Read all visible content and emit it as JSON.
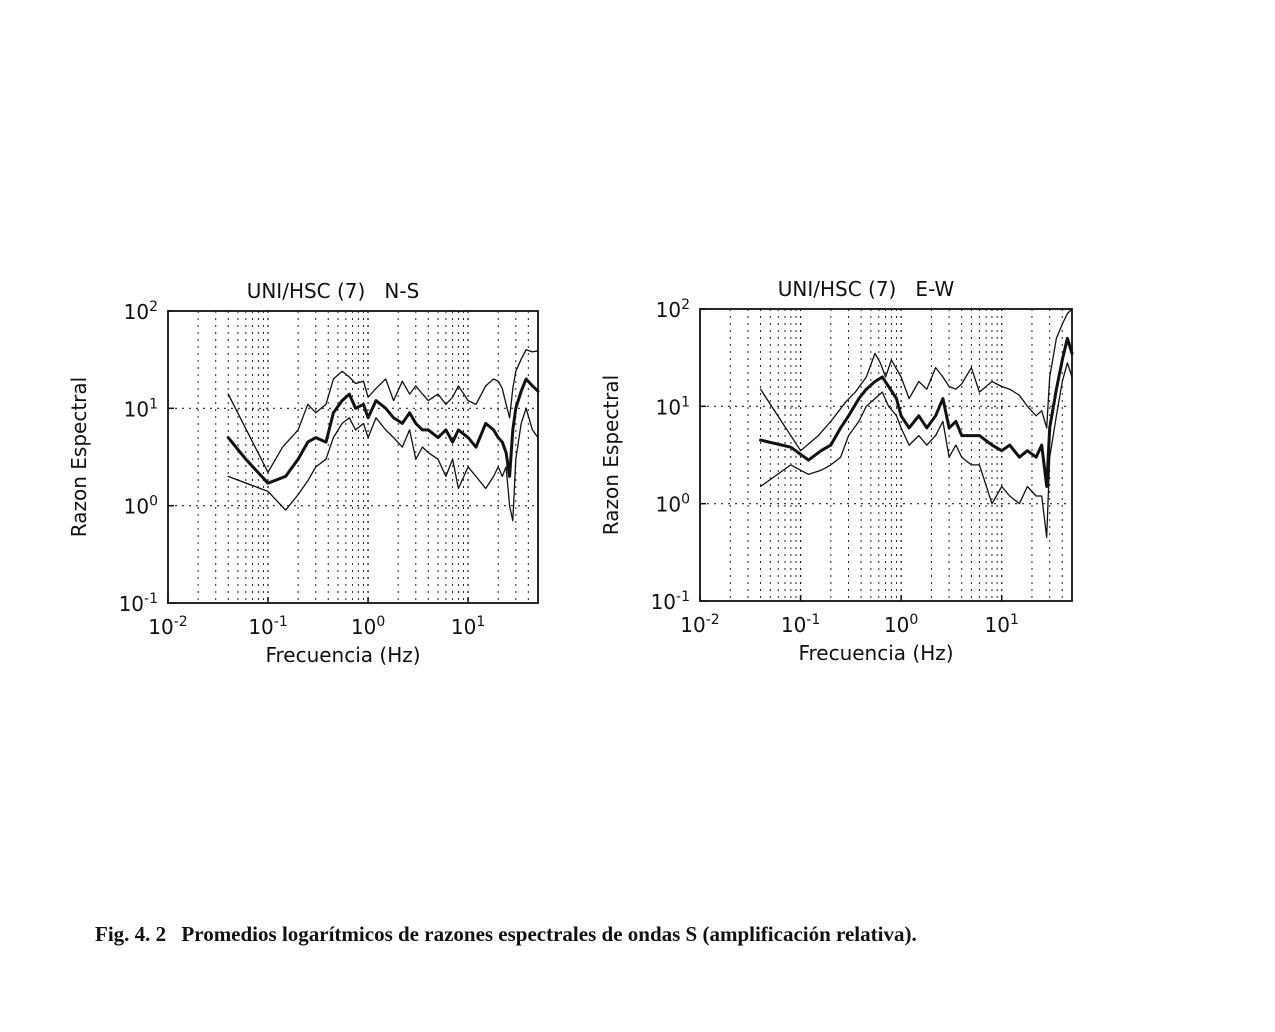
{
  "chart_data": [
    {
      "type": "line",
      "title": "UNI/HSC (7)   N-S",
      "xlabel": "Frecuencia (Hz)",
      "ylabel": "Razon Espectral",
      "xscale": "log",
      "yscale": "log",
      "xlim": [
        0.01,
        50
      ],
      "ylim": [
        0.1,
        100
      ],
      "grid": true,
      "xticks": [
        {
          "base": "10",
          "exp": "-2"
        },
        {
          "base": "10",
          "exp": "-1"
        },
        {
          "base": "10",
          "exp": "0"
        },
        {
          "base": "10",
          "exp": "1"
        }
      ],
      "yticks": [
        {
          "base": "10",
          "exp": "-1"
        },
        {
          "base": "10",
          "exp": "0"
        },
        {
          "base": "10",
          "exp": "1"
        },
        {
          "base": "10",
          "exp": "2"
        }
      ],
      "series": [
        {
          "role": "upper",
          "x": [
            0.04,
            0.1,
            0.14,
            0.2,
            0.25,
            0.3,
            0.38,
            0.45,
            0.55,
            0.65,
            0.75,
            0.9,
            1.0,
            1.2,
            1.5,
            1.8,
            2.2,
            2.6,
            3.0,
            3.5,
            4.0,
            5.0,
            6.0,
            7.0,
            8.0,
            10,
            12,
            15,
            18,
            20,
            22,
            24,
            26,
            28,
            30,
            34,
            38,
            44,
            50
          ],
          "y": [
            14,
            2.2,
            4,
            6,
            11,
            9,
            11,
            20,
            24,
            21,
            18,
            19,
            13,
            16,
            20,
            12,
            19,
            14,
            17,
            14,
            12,
            14,
            11,
            13,
            17,
            12,
            11,
            17,
            20,
            19,
            16,
            11,
            8,
            16,
            24,
            32,
            40,
            38,
            39
          ]
        },
        {
          "role": "mean",
          "x": [
            0.04,
            0.06,
            0.1,
            0.15,
            0.2,
            0.25,
            0.3,
            0.38,
            0.45,
            0.55,
            0.65,
            0.75,
            0.9,
            1.0,
            1.2,
            1.5,
            1.8,
            2.2,
            2.6,
            3.0,
            3.5,
            4.0,
            5.0,
            6.0,
            7.0,
            8.0,
            10,
            12,
            15,
            18,
            20,
            22,
            24,
            26,
            28,
            30,
            34,
            38,
            44,
            50
          ],
          "y": [
            5,
            3,
            1.7,
            2,
            3,
            4.5,
            5,
            4.5,
            9,
            12,
            14,
            10,
            11,
            8,
            12,
            10,
            8,
            7,
            9,
            7,
            6,
            6,
            5,
            6,
            4.5,
            6,
            5,
            4,
            7,
            6,
            5,
            4.5,
            3.5,
            2,
            6,
            10,
            15,
            20,
            17,
            15
          ]
        },
        {
          "role": "lower",
          "x": [
            0.04,
            0.1,
            0.15,
            0.2,
            0.25,
            0.3,
            0.38,
            0.45,
            0.55,
            0.65,
            0.75,
            0.9,
            1.0,
            1.2,
            1.5,
            1.8,
            2.2,
            2.6,
            3.0,
            3.5,
            4.0,
            5.0,
            6.0,
            7.0,
            8.0,
            10,
            12,
            15,
            18,
            20,
            22,
            24,
            26,
            28,
            30,
            34,
            38,
            44,
            50
          ],
          "y": [
            2,
            1.4,
            0.9,
            1.3,
            1.8,
            2.5,
            3,
            5,
            7,
            8,
            6,
            7,
            5,
            8,
            6,
            5,
            4,
            6,
            3,
            4,
            3.5,
            3,
            2,
            3,
            1.5,
            2.5,
            2,
            1.5,
            2,
            2.5,
            2,
            2.5,
            1,
            0.7,
            3,
            7,
            10,
            6,
            5
          ]
        }
      ]
    },
    {
      "type": "line",
      "title": "UNI/HSC (7)   E-W",
      "xlabel": "Frecuencia (Hz)",
      "ylabel": "Razon Espectral",
      "xscale": "log",
      "yscale": "log",
      "xlim": [
        0.01,
        50
      ],
      "ylim": [
        0.1,
        100
      ],
      "grid": true,
      "xticks": [
        {
          "base": "10",
          "exp": "-2"
        },
        {
          "base": "10",
          "exp": "-1"
        },
        {
          "base": "10",
          "exp": "0"
        },
        {
          "base": "10",
          "exp": "1"
        }
      ],
      "yticks": [
        {
          "base": "10",
          "exp": "-1"
        },
        {
          "base": "10",
          "exp": "0"
        },
        {
          "base": "10",
          "exp": "1"
        },
        {
          "base": "10",
          "exp": "2"
        }
      ],
      "series": [
        {
          "role": "upper",
          "x": [
            0.04,
            0.1,
            0.15,
            0.2,
            0.28,
            0.35,
            0.45,
            0.55,
            0.62,
            0.7,
            0.8,
            1.0,
            1.2,
            1.5,
            1.8,
            2.2,
            2.6,
            3.0,
            3.5,
            4.0,
            5.0,
            6.0,
            8.0,
            10,
            12,
            15,
            18,
            22,
            25,
            28,
            30,
            35,
            40,
            45,
            50
          ],
          "y": [
            15,
            3.5,
            5,
            7,
            11,
            14,
            20,
            35,
            28,
            20,
            30,
            20,
            12,
            18,
            15,
            25,
            20,
            16,
            15,
            17,
            25,
            14,
            18,
            16,
            15,
            13,
            10,
            8,
            9,
            6,
            20,
            50,
            70,
            90,
            100
          ]
        },
        {
          "role": "mean",
          "x": [
            0.04,
            0.08,
            0.12,
            0.16,
            0.2,
            0.25,
            0.3,
            0.38,
            0.45,
            0.55,
            0.65,
            0.75,
            0.9,
            1.0,
            1.2,
            1.5,
            1.8,
            2.2,
            2.6,
            3.0,
            3.5,
            4.0,
            5.0,
            6.0,
            8.0,
            10,
            12,
            15,
            18,
            22,
            25,
            28,
            30,
            35,
            40,
            45,
            50
          ],
          "y": [
            4.5,
            3.8,
            2.8,
            3.5,
            4,
            6,
            8,
            12,
            15,
            18,
            20,
            16,
            12,
            8,
            6,
            8,
            6,
            8,
            12,
            6,
            7,
            5,
            5,
            5,
            4,
            3.5,
            4,
            3,
            3.5,
            3,
            4,
            1.5,
            6,
            15,
            30,
            50,
            35
          ]
        },
        {
          "role": "lower",
          "x": [
            0.04,
            0.08,
            0.12,
            0.16,
            0.2,
            0.25,
            0.3,
            0.38,
            0.45,
            0.55,
            0.65,
            0.75,
            0.9,
            1.0,
            1.2,
            1.5,
            1.8,
            2.2,
            2.6,
            3.0,
            3.5,
            4.0,
            5.0,
            6.0,
            8.0,
            10,
            12,
            15,
            18,
            22,
            25,
            28,
            30,
            35,
            40,
            45,
            50
          ],
          "y": [
            1.5,
            2.5,
            2,
            2.2,
            2.5,
            3,
            5,
            7,
            10,
            12,
            14,
            10,
            8,
            6,
            4,
            5,
            4,
            5,
            7,
            3,
            4,
            3,
            2.5,
            2.5,
            1,
            1.5,
            1.2,
            1,
            1.5,
            1.2,
            1.2,
            0.45,
            3,
            8,
            18,
            28,
            20
          ]
        }
      ]
    }
  ],
  "caption": {
    "number": "Fig. 4. 2",
    "text": "Promedios logarítmicos de razones espectrales de ondas S (amplificación relativa)."
  },
  "colors": {
    "ink": "#111111",
    "grid": "#222222"
  }
}
